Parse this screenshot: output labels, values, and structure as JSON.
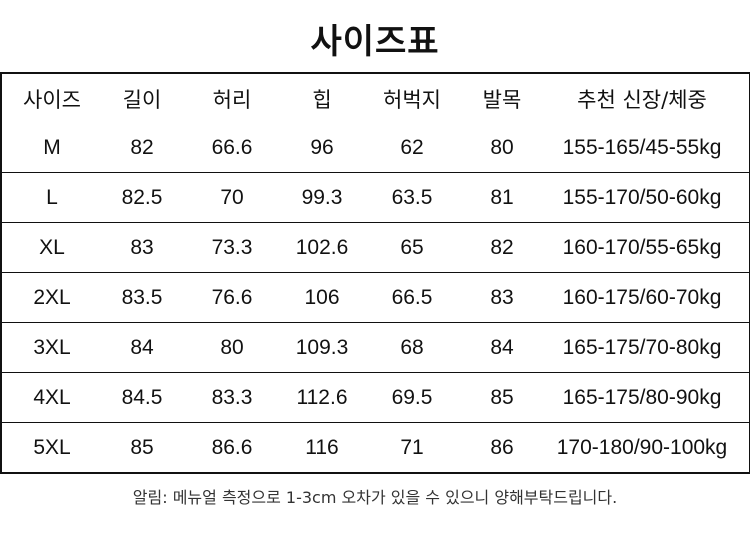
{
  "title": "사이즈표",
  "table": {
    "headers": [
      "사이즈",
      "길이",
      "허리",
      "힙",
      "허벅지",
      "발목",
      "추천 신장/체중"
    ],
    "rows": [
      [
        "M",
        "82",
        "66.6",
        "96",
        "62",
        "80",
        "155-165/45-55kg"
      ],
      [
        "L",
        "82.5",
        "70",
        "99.3",
        "63.5",
        "81",
        "155-170/50-60kg"
      ],
      [
        "XL",
        "83",
        "73.3",
        "102.6",
        "65",
        "82",
        "160-170/55-65kg"
      ],
      [
        "2XL",
        "83.5",
        "76.6",
        "106",
        "66.5",
        "83",
        "160-175/60-70kg"
      ],
      [
        "3XL",
        "84",
        "80",
        "109.3",
        "68",
        "84",
        "165-175/70-80kg"
      ],
      [
        "4XL",
        "84.5",
        "83.3",
        "112.6",
        "69.5",
        "85",
        "165-175/80-90kg"
      ],
      [
        "5XL",
        "85",
        "86.6",
        "116",
        "71",
        "86",
        "170-180/90-100kg"
      ]
    ]
  },
  "note": "알림: 메뉴얼 측정으로 1-3cm 오차가 있을 수 있으니 양해부탁드립니다."
}
